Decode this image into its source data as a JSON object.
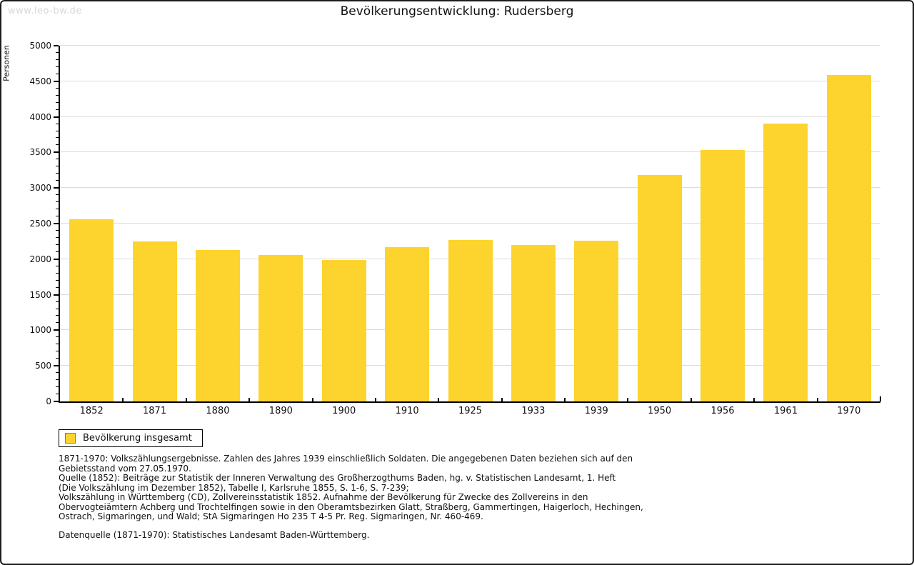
{
  "watermark": "www.leo-bw.de",
  "title": "Bevölkerungsentwicklung: Rudersberg",
  "chart_data": {
    "type": "bar",
    "title": "Bevölkerungsentwicklung: Rudersberg",
    "xlabel": "",
    "ylabel": "Personen",
    "categories": [
      "1852",
      "1871",
      "1880",
      "1890",
      "1900",
      "1910",
      "1925",
      "1933",
      "1939",
      "1950",
      "1956",
      "1961",
      "1970"
    ],
    "values": [
      2560,
      2250,
      2130,
      2060,
      1990,
      2170,
      2270,
      2200,
      2260,
      3180,
      3530,
      3910,
      4590
    ],
    "series_name": "Bevölkerung insgesamt",
    "ylim": [
      0,
      5000
    ],
    "ytick_step": 500,
    "minor_tick_step": 100,
    "grid": true,
    "bar_color": "#FCD42D",
    "gridline_color": "#dcdcdc",
    "legend": {
      "label": "Bevölkerung insgesamt",
      "position": "bottom-left"
    }
  },
  "footnotes": {
    "notes": "1871-1970: Volkszählungsergebnisse. Zahlen des Jahres 1939 einschließlich Soldaten. Die angegebenen Daten beziehen sich auf den\nGebietsstand vom 27.05.1970.\nQuelle (1852): Beiträge zur Statistik der Inneren Verwaltung des Großherzogthums Baden, hg. v. Statistischen Landesamt, 1. Heft\n(Die Volkszählung im Dezember 1852), Tabelle I, Karlsruhe 1855, S. 1-6, S. 7-239;\nVolkszählung in Württemberg (CD), Zollvereinsstatistik 1852. Aufnahme der Bevölkerung für Zwecke des Zollvereins in den\nObervogteiämtern Achberg und Trochtelfingen sowie in den Oberamtsbezirken Glatt, Straßberg, Gammertingen, Haigerloch, Hechingen,\nOstrach, Sigmaringen, und Wald; StA Sigmaringen Ho 235 T 4-5 Pr. Reg. Sigmaringen, Nr. 460-469.",
    "datasource": "Datenquelle (1871-1970): Statistisches Landesamt Baden-Württemberg."
  }
}
